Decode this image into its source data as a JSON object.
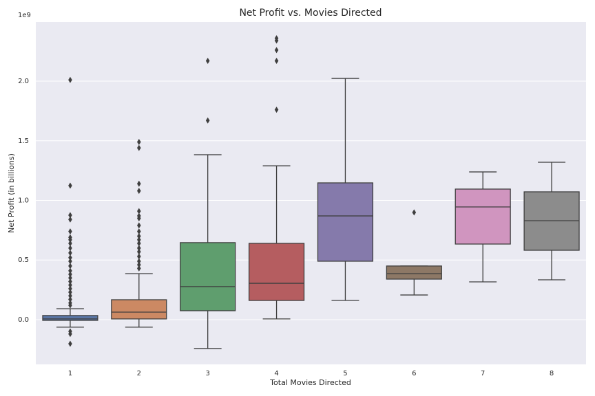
{
  "chart_data": {
    "type": "box",
    "title": "Net Profit vs. Movies Directed",
    "x_label": "Total Movies Directed",
    "y_label": "Net Profit (in billions)",
    "y_offset_label": "1e9",
    "categories": [
      "1",
      "2",
      "3",
      "4",
      "5",
      "6",
      "7",
      "8"
    ],
    "boxes": [
      {
        "color": "#5975a4",
        "whisker_low": -0.063,
        "q1": -0.006,
        "median": 0.006,
        "q3": 0.035,
        "whisker_high": 0.092,
        "outliers": [
          2.01,
          1.124,
          0.876,
          0.84,
          0.74,
          0.69,
          0.67,
          0.64,
          0.6,
          0.56,
          0.52,
          0.49,
          0.45,
          0.41,
          0.38,
          0.35,
          0.32,
          0.29,
          0.26,
          0.23,
          0.2,
          0.17,
          0.14,
          0.12,
          -0.098,
          -0.12,
          -0.202
        ]
      },
      {
        "color": "#cc8963",
        "whisker_low": -0.063,
        "q1": 0.006,
        "median": 0.063,
        "q3": 0.167,
        "whisker_high": 0.386,
        "outliers": [
          1.49,
          1.44,
          1.14,
          1.08,
          0.91,
          0.87,
          0.85,
          0.79,
          0.74,
          0.7,
          0.67,
          0.64,
          0.6,
          0.57,
          0.53,
          0.49,
          0.46,
          0.43
        ]
      },
      {
        "color": "#5f9e6e",
        "whisker_low": -0.242,
        "q1": 0.075,
        "median": 0.277,
        "q3": 0.646,
        "whisker_high": 1.383,
        "outliers": [
          1.67,
          2.17
        ]
      },
      {
        "color": "#b55d60",
        "whisker_low": 0.006,
        "q1": 0.161,
        "median": 0.305,
        "q3": 0.64,
        "whisker_high": 1.29,
        "outliers": [
          1.76,
          2.17,
          2.26,
          2.34,
          2.36
        ]
      },
      {
        "color": "#857aab",
        "whisker_low": 0.161,
        "q1": 0.49,
        "median": 0.87,
        "q3": 1.147,
        "whisker_high": 2.023,
        "outliers": []
      },
      {
        "color": "#8d7866",
        "whisker_low": 0.207,
        "q1": 0.34,
        "median": 0.386,
        "q3": 0.45,
        "whisker_high": 0.45,
        "outliers": [
          0.899
        ]
      },
      {
        "color": "#d095bf",
        "whisker_low": 0.317,
        "q1": 0.634,
        "median": 0.945,
        "q3": 1.095,
        "whisker_high": 1.239,
        "outliers": []
      },
      {
        "color": "#8c8c8c",
        "whisker_low": 0.334,
        "q1": 0.582,
        "median": 0.83,
        "q3": 1.072,
        "whisker_high": 1.32,
        "outliers": []
      }
    ],
    "ylim": [
      -0.375,
      2.496
    ],
    "yticks": [
      {
        "value": 0,
        "label": "0.0"
      },
      0.5,
      {
        "value": 1,
        "label": "1.0"
      },
      1.5,
      {
        "value": 2,
        "label": "2.0"
      }
    ],
    "grid": true
  }
}
